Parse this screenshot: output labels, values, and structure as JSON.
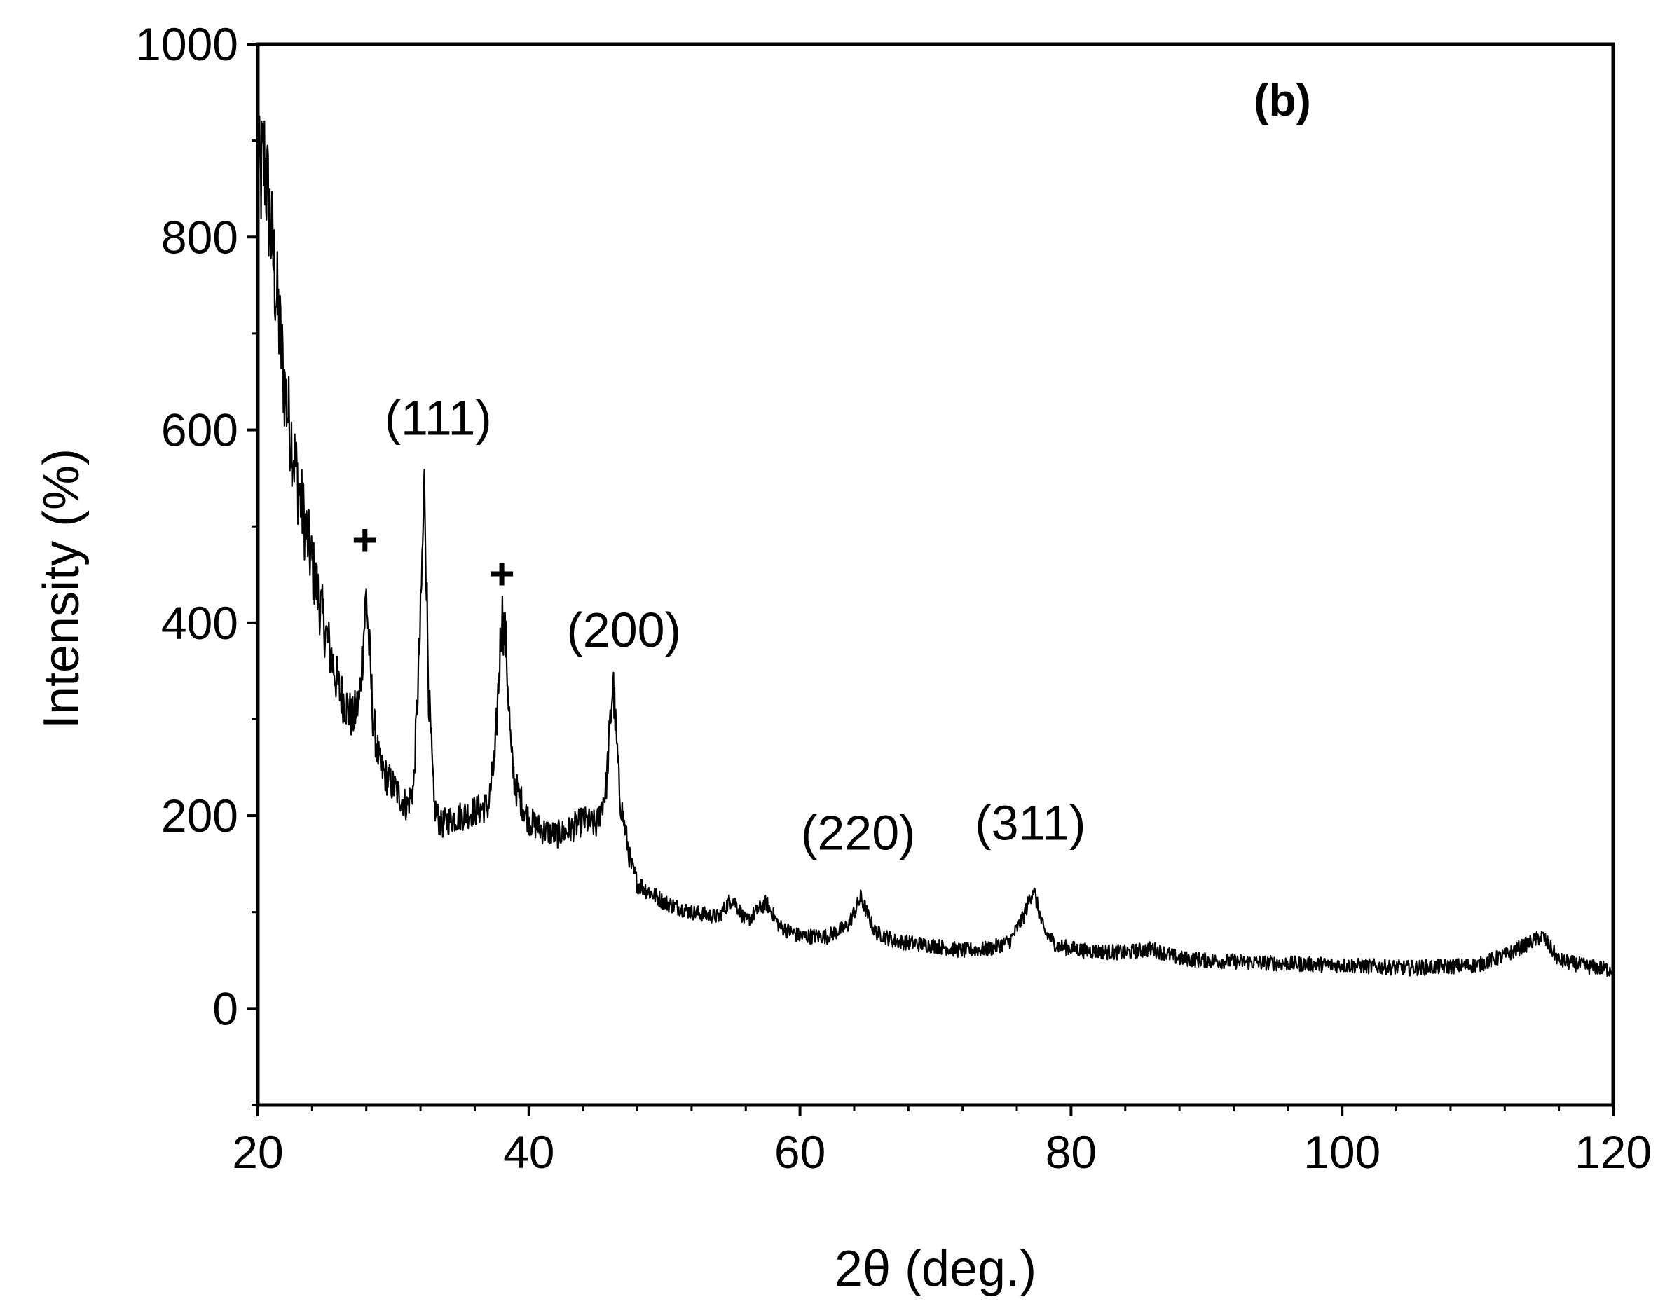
{
  "chart_data": {
    "type": "line",
    "panel_label": "(b)",
    "xlabel": "2θ (deg.)",
    "ylabel": "Intensity (%)",
    "xlim": [
      20,
      120
    ],
    "ylim": [
      -100,
      1000
    ],
    "x_ticks": [
      20,
      40,
      60,
      80,
      100,
      120
    ],
    "x_tick_labels": [
      "20",
      "40",
      "60",
      "80",
      "100",
      "120"
    ],
    "y_ticks": [
      0,
      200,
      400,
      600,
      800,
      1000
    ],
    "y_tick_labels": [
      "0",
      "200",
      "400",
      "600",
      "800",
      "1000"
    ],
    "x_minor_step": 4,
    "y_minor_step": 100,
    "grid": false,
    "line_color": "#000000",
    "series": [
      {
        "x": [
          20,
          20.5,
          21,
          21.5,
          22,
          22.5,
          23,
          24,
          25,
          26,
          27,
          27.5,
          28,
          28.5,
          29,
          30,
          31,
          31.5,
          32,
          32.3,
          32.6,
          33,
          33.5,
          34,
          35,
          36,
          37,
          37.5,
          38,
          38.3,
          38.7,
          39,
          40,
          41,
          42,
          43,
          44,
          45,
          45.7,
          46.2,
          46.7,
          47.5,
          48,
          50,
          52,
          54,
          55,
          56,
          57.5,
          58.5,
          60,
          62,
          63.5,
          64.5,
          65.5,
          67,
          70,
          72,
          74,
          75.5,
          76.5,
          77.2,
          78,
          79,
          81,
          84,
          86,
          88,
          90,
          95,
          100,
          105,
          110,
          112,
          114.8,
          116,
          118,
          120
        ],
        "y": [
          850,
          880,
          800,
          720,
          640,
          590,
          540,
          460,
          390,
          330,
          300,
          320,
          430,
          300,
          250,
          230,
          210,
          230,
          400,
          550,
          330,
          210,
          190,
          195,
          200,
          205,
          210,
          260,
          410,
          380,
          260,
          230,
          195,
          185,
          180,
          185,
          195,
          190,
          230,
          340,
          220,
          150,
          130,
          110,
          100,
          95,
          115,
          90,
          110,
          85,
          75,
          75,
          85,
          115,
          80,
          70,
          65,
          60,
          62,
          70,
          95,
          125,
          80,
          65,
          60,
          58,
          62,
          52,
          50,
          47,
          45,
          42,
          45,
          55,
          75,
          50,
          44,
          40
        ]
      }
    ],
    "annotations": [
      {
        "text": "(111)",
        "x": 33.3,
        "y": 595
      },
      {
        "text": "(200)",
        "x": 47.0,
        "y": 375
      },
      {
        "text": "(220)",
        "x": 64.3,
        "y": 165
      },
      {
        "text": "(311)",
        "x": 77.0,
        "y": 175
      }
    ],
    "markers": [
      {
        "text": "+",
        "x": 27.9,
        "y": 470
      },
      {
        "text": "+",
        "x": 38.0,
        "y": 435
      }
    ]
  }
}
